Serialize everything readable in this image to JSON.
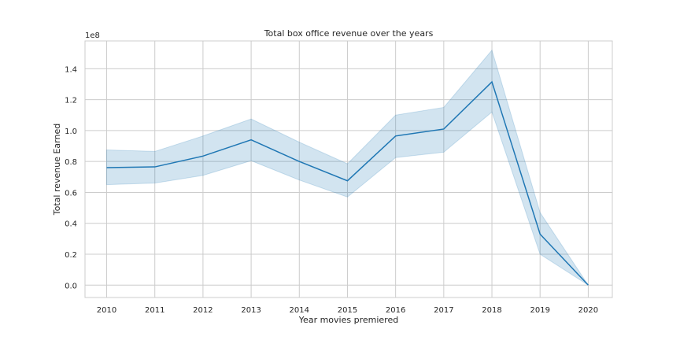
{
  "chart_data": {
    "type": "line",
    "title": "Total box office revenue over the years",
    "xlabel": "Year movies premiered",
    "ylabel": "Total revenue Earned",
    "y_offset_label": "1e8",
    "x": [
      2010,
      2011,
      2012,
      2013,
      2014,
      2015,
      2016,
      2017,
      2018,
      2019,
      2020
    ],
    "x_tick_labels": [
      "2010",
      "2011",
      "2012",
      "2013",
      "2014",
      "2015",
      "2016",
      "2017",
      "2018",
      "2019",
      "2020"
    ],
    "y_ticks": [
      0.0,
      0.2,
      0.4,
      0.6,
      0.8,
      1.0,
      1.2,
      1.4
    ],
    "y_tick_labels": [
      "0.0",
      "0.2",
      "0.4",
      "0.6",
      "0.8",
      "1.0",
      "1.2",
      "1.4"
    ],
    "xlim": [
      2009.55,
      2020.5
    ],
    "ylim": [
      -0.08,
      1.58
    ],
    "grid": true,
    "series": [
      {
        "values": [
          0.76,
          0.765,
          0.835,
          0.94,
          0.8,
          0.675,
          0.965,
          1.01,
          1.315,
          0.33,
          0.0
        ],
        "ci_lower": [
          0.65,
          0.66,
          0.71,
          0.805,
          0.68,
          0.57,
          0.825,
          0.86,
          1.12,
          0.2,
          0.0
        ],
        "ci_upper": [
          0.875,
          0.865,
          0.965,
          1.075,
          0.925,
          0.785,
          1.1,
          1.15,
          1.52,
          0.47,
          0.0
        ],
        "color": "#1f77b4",
        "band_color": "#1f77b4"
      }
    ]
  }
}
